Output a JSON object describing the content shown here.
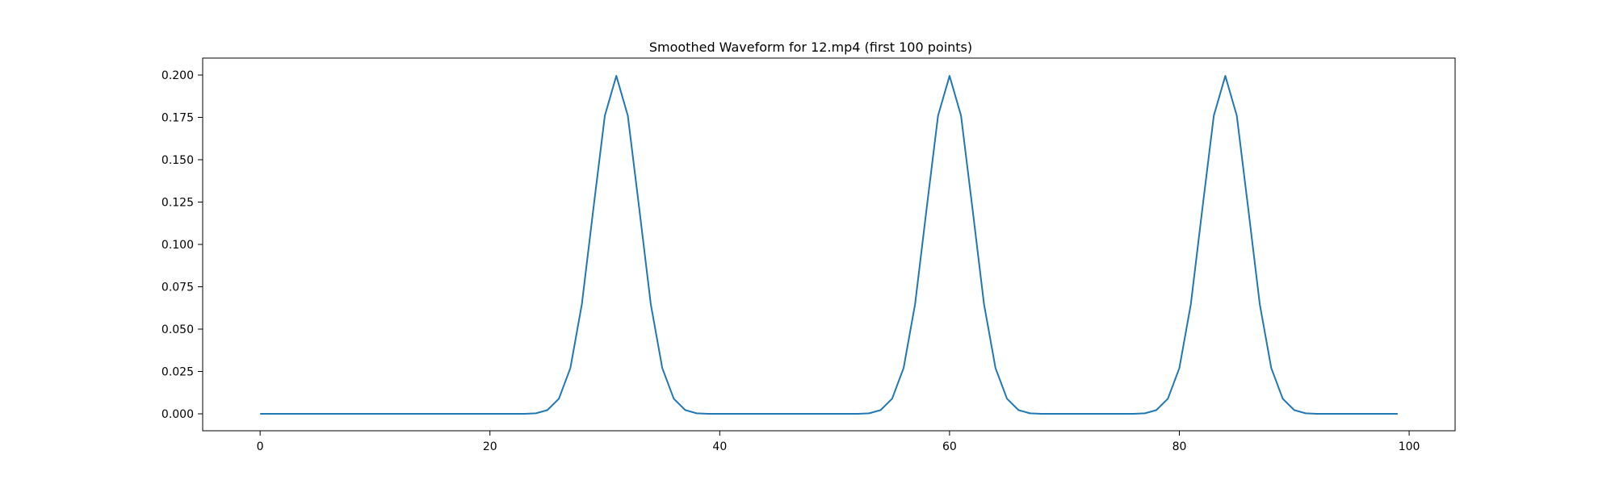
{
  "chart_data": {
    "type": "line",
    "title": "Smoothed Waveform for 12.mp4 (first 100 points)",
    "xlabel": "",
    "ylabel": "",
    "xlim": [
      -5,
      104
    ],
    "ylim": [
      -0.01,
      0.21
    ],
    "grid": false,
    "legend": "none",
    "x_ticks": [
      0,
      20,
      40,
      60,
      80,
      100
    ],
    "x_tick_labels": [
      "0",
      "20",
      "40",
      "60",
      "80",
      "100"
    ],
    "y_ticks": [
      0,
      0.025,
      0.05,
      0.075,
      0.1,
      0.125,
      0.15,
      0.175,
      0.2
    ],
    "y_tick_labels": [
      "0.000",
      "0.025",
      "0.050",
      "0.075",
      "0.100",
      "0.125",
      "0.150",
      "0.175",
      "0.200"
    ],
    "series": [
      {
        "color": "#1f77b4",
        "peaks": [
          31,
          60,
          84
        ],
        "peak_profile": [
          0.0003,
          0.0022,
          0.0089,
          0.027,
          0.0647,
          0.1209,
          0.176,
          0.1995,
          0.176,
          0.1209,
          0.0647,
          0.027,
          0.0089,
          0.0022,
          0.0003
        ],
        "x_start": 0,
        "x_end": 99
      }
    ]
  }
}
